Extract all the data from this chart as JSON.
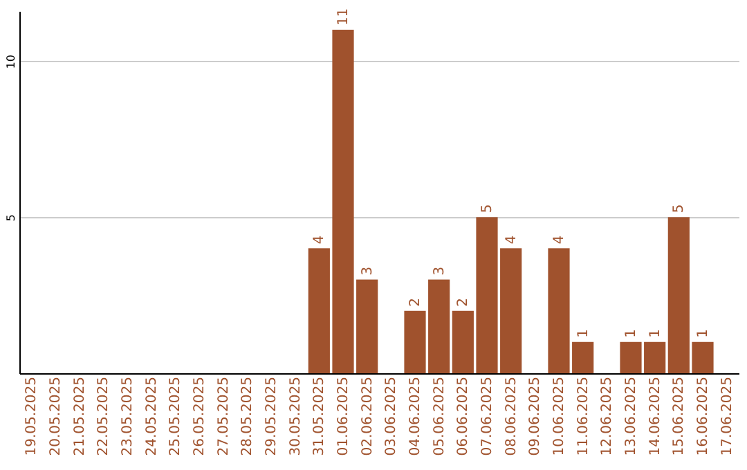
{
  "chart_data": {
    "type": "bar",
    "categories": [
      "19.05.2025",
      "20.05.2025",
      "21.05.2025",
      "22.05.2025",
      "23.05.2025",
      "24.05.2025",
      "25.05.2025",
      "26.05.2025",
      "27.05.2025",
      "28.05.2025",
      "29.05.2025",
      "30.05.2025",
      "31.05.2025",
      "01.06.2025",
      "02.06.2025",
      "03.06.2025",
      "04.06.2025",
      "05.06.2025",
      "06.06.2025",
      "07.06.2025",
      "08.06.2025",
      "09.06.2025",
      "10.06.2025",
      "11.06.2025",
      "12.06.2025",
      "13.06.2025",
      "14.06.2025",
      "15.06.2025",
      "16.06.2025",
      "17.06.2025"
    ],
    "values": [
      0,
      0,
      0,
      0,
      0,
      0,
      0,
      0,
      0,
      0,
      0,
      0,
      4,
      11,
      3,
      0,
      2,
      3,
      2,
      5,
      4,
      0,
      4,
      1,
      0,
      1,
      1,
      5,
      1,
      0
    ],
    "value_labels": [
      null,
      null,
      null,
      null,
      null,
      null,
      null,
      null,
      null,
      null,
      null,
      null,
      "4",
      "11",
      "3",
      null,
      "2",
      "3",
      "2",
      "5",
      "4",
      null,
      "4",
      "1",
      null,
      "1",
      "1",
      "5",
      "1",
      null
    ],
    "color": "#a0522d",
    "ylim": [
      0,
      11.6
    ],
    "yticks": [
      5,
      10
    ],
    "grid": "y"
  }
}
